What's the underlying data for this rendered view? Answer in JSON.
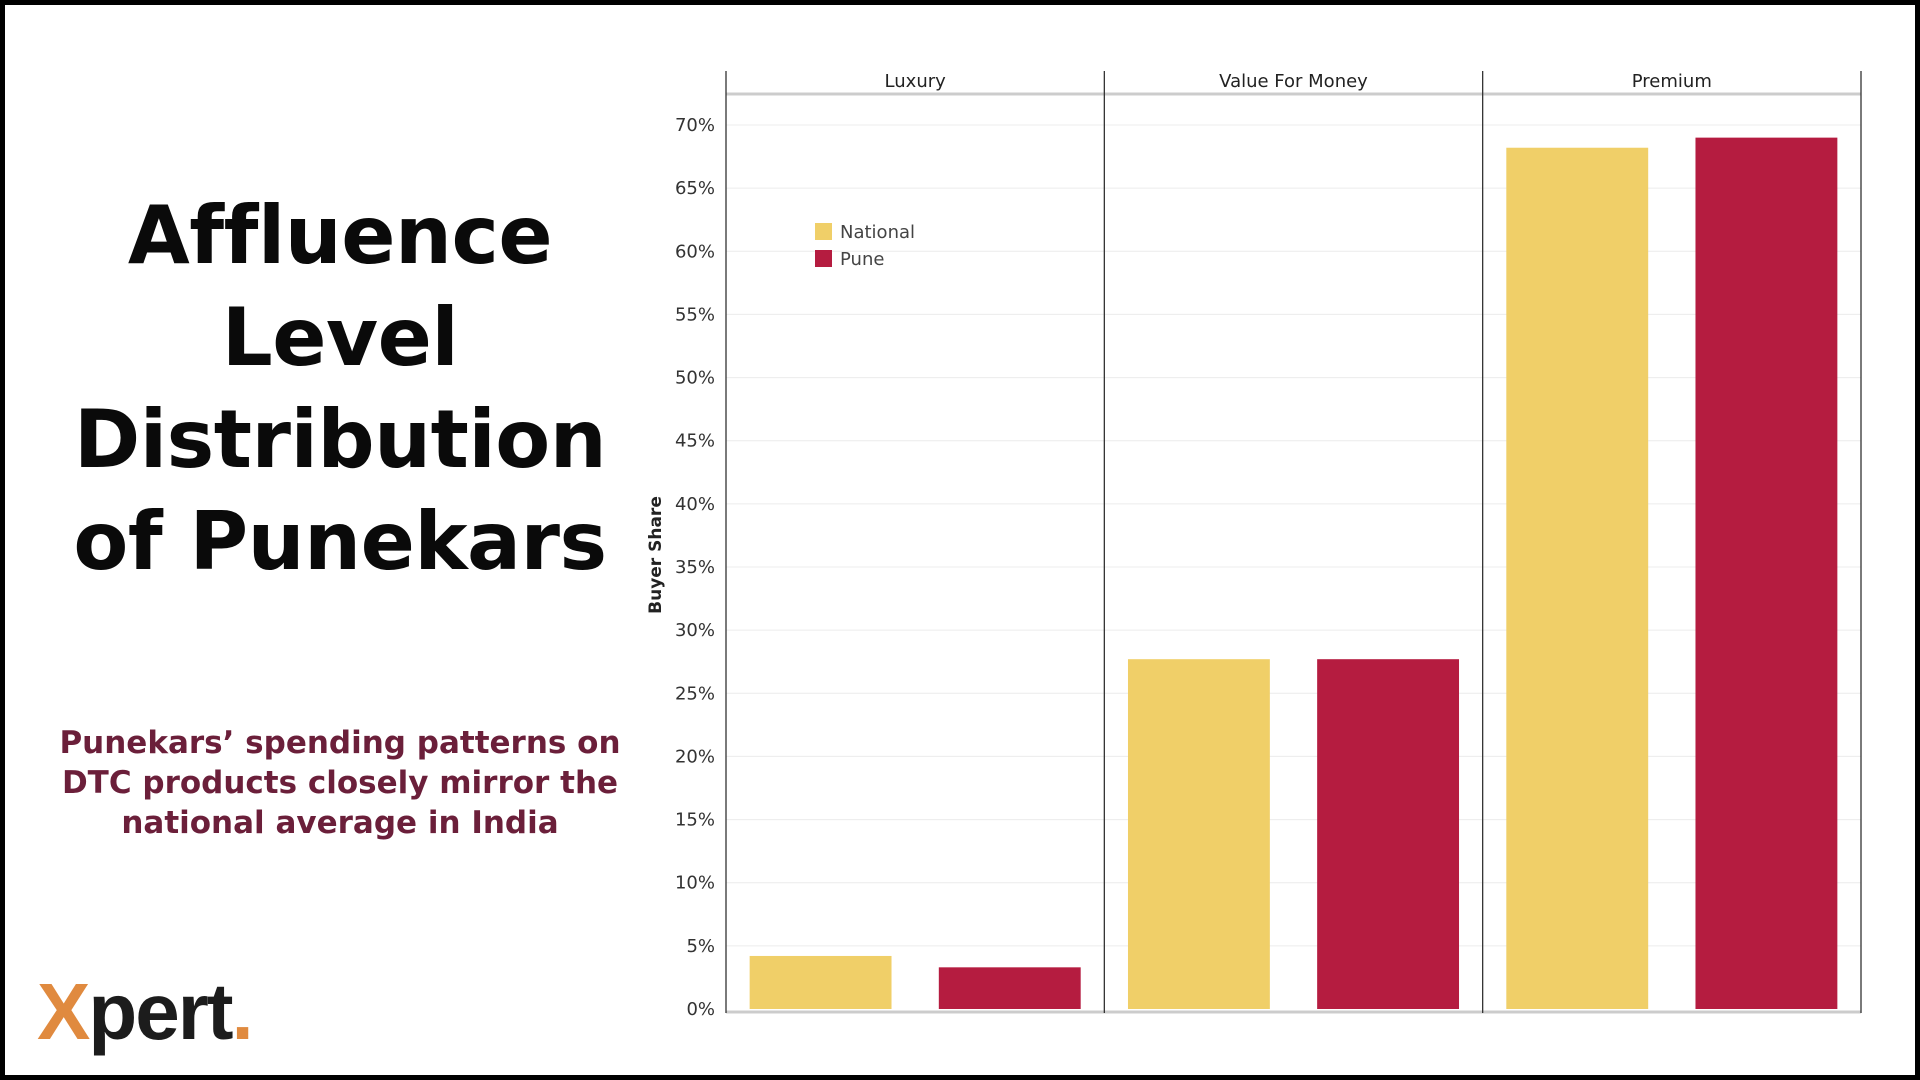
{
  "slide": {
    "title_lines": [
      "Affluence",
      "Level",
      "Distribution",
      "of Punekars"
    ],
    "subtitle_lines": [
      "Punekars’ spending patterns on",
      "DTC products closely mirror the",
      "national average in India"
    ],
    "logo": {
      "x": "X",
      "rest": "pert",
      "dot": ".",
      "accent_color": "#e08a3f",
      "text_color": "#1c1c1c"
    }
  },
  "chart_data": {
    "type": "bar",
    "panels": [
      "Luxury",
      "Value For Money",
      "Premium"
    ],
    "series": [
      {
        "name": "National",
        "color": "#f0cf68",
        "values": [
          4.2,
          27.7,
          68.2
        ]
      },
      {
        "name": "Pune",
        "color": "#b51c40",
        "values": [
          3.3,
          27.7,
          69.0
        ]
      }
    ],
    "ylabel": "Buyer Share",
    "ylim": [
      0,
      70
    ],
    "yticks": [
      0,
      5,
      10,
      15,
      20,
      25,
      30,
      35,
      40,
      45,
      50,
      55,
      60,
      65,
      70
    ],
    "ytick_labels": [
      "0%",
      "5%",
      "10%",
      "15%",
      "20%",
      "25%",
      "30%",
      "35%",
      "40%",
      "45%",
      "50%",
      "55%",
      "60%",
      "65%",
      "70%"
    ],
    "legend_position": "top-left",
    "grid": true
  }
}
